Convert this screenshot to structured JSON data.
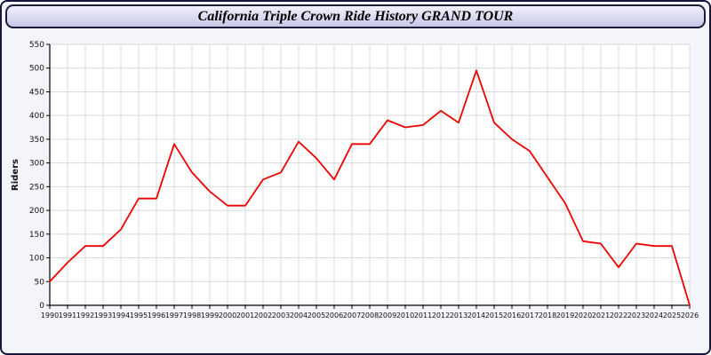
{
  "window": {
    "title": "California Triple Crown Ride History GRAND TOUR"
  },
  "colors": {
    "line": "#ee0000",
    "grid": "#d9d9d9",
    "axis": "#000000",
    "plot_bg": "#ffffff",
    "panel_bg": "#f4f4fb"
  },
  "chart_data": {
    "type": "line",
    "title": "California Triple Crown Ride History GRAND TOUR",
    "xlabel": "",
    "ylabel": "Riders",
    "ylim": [
      0,
      550
    ],
    "ytick_step": 50,
    "grid": true,
    "legend": "none",
    "x": [
      1990,
      1991,
      1992,
      1993,
      1994,
      1995,
      1996,
      1997,
      1998,
      1999,
      2000,
      2001,
      2002,
      2003,
      2004,
      2005,
      2006,
      2007,
      2008,
      2009,
      2010,
      2011,
      2012,
      2013,
      2014,
      2015,
      2016,
      2017,
      2018,
      2019,
      2020,
      2021,
      2022,
      2023,
      2024,
      2025,
      2026
    ],
    "series": [
      {
        "name": "Riders",
        "color": "#ee0000",
        "values": [
          50,
          90,
          125,
          125,
          160,
          225,
          225,
          340,
          280,
          240,
          210,
          210,
          265,
          280,
          345,
          310,
          265,
          340,
          340,
          390,
          375,
          380,
          410,
          385,
          495,
          385,
          350,
          325,
          270,
          215,
          135,
          130,
          80,
          130,
          125,
          125,
          0
        ]
      }
    ]
  }
}
